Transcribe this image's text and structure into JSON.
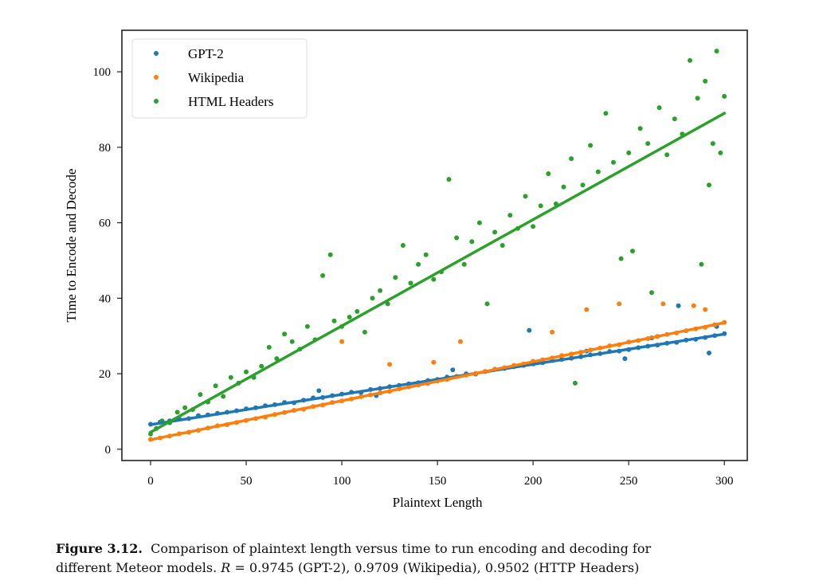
{
  "chart_data": {
    "type": "scatter",
    "title": "",
    "xlabel": "Plaintext Length",
    "ylabel": "Time to Encode and Decode",
    "xlim": [
      -15,
      312
    ],
    "ylim": [
      -3,
      111
    ],
    "xticks": [
      0,
      50,
      100,
      150,
      200,
      250,
      300
    ],
    "yticks": [
      0,
      20,
      40,
      60,
      80,
      100
    ],
    "grid": false,
    "legend_position": "top-left",
    "series": [
      {
        "name": "GPT-2",
        "color": "#1f77b4",
        "fit": {
          "x": [
            0,
            300
          ],
          "y": [
            6.5,
            30.5
          ]
        },
        "points": [
          [
            0,
            6.6
          ],
          [
            5,
            7.2
          ],
          [
            10,
            7.5
          ],
          [
            15,
            8.0
          ],
          [
            20,
            8.1
          ],
          [
            25,
            8.9
          ],
          [
            30,
            9.1
          ],
          [
            35,
            9.5
          ],
          [
            40,
            9.8
          ],
          [
            45,
            10.2
          ],
          [
            50,
            10.7
          ],
          [
            55,
            11.0
          ],
          [
            60,
            11.5
          ],
          [
            65,
            11.8
          ],
          [
            70,
            12.4
          ],
          [
            75,
            12.3
          ],
          [
            80,
            13.0
          ],
          [
            85,
            13.6
          ],
          [
            90,
            13.7
          ],
          [
            95,
            14.2
          ],
          [
            100,
            14.6
          ],
          [
            105,
            15.1
          ],
          [
            110,
            15.0
          ],
          [
            115,
            15.8
          ],
          [
            120,
            16.1
          ],
          [
            125,
            16.6
          ],
          [
            130,
            16.9
          ],
          [
            135,
            17.3
          ],
          [
            140,
            17.6
          ],
          [
            145,
            18.2
          ],
          [
            150,
            18.5
          ],
          [
            155,
            19.1
          ],
          [
            160,
            19.3
          ],
          [
            165,
            20.0
          ],
          [
            170,
            19.9
          ],
          [
            175,
            20.6
          ],
          [
            180,
            21.2
          ],
          [
            185,
            21.4
          ],
          [
            190,
            21.9
          ],
          [
            195,
            22.2
          ],
          [
            200,
            22.6
          ],
          [
            205,
            22.9
          ],
          [
            210,
            23.5
          ],
          [
            215,
            23.8
          ],
          [
            220,
            24.1
          ],
          [
            225,
            24.5
          ],
          [
            230,
            25.0
          ],
          [
            235,
            25.3
          ],
          [
            240,
            25.9
          ],
          [
            245,
            26.0
          ],
          [
            250,
            26.4
          ],
          [
            255,
            26.9
          ],
          [
            260,
            27.3
          ],
          [
            265,
            27.6
          ],
          [
            270,
            28.1
          ],
          [
            275,
            28.3
          ],
          [
            280,
            28.9
          ],
          [
            285,
            29.1
          ],
          [
            290,
            29.6
          ],
          [
            295,
            30.1
          ],
          [
            300,
            30.6
          ],
          [
            88,
            15.5
          ],
          [
            118,
            14.2
          ],
          [
            158,
            21.0
          ],
          [
            198,
            31.5
          ],
          [
            228,
            26.0
          ],
          [
            248,
            24.0
          ],
          [
            262,
            29.5
          ],
          [
            276,
            38.0
          ],
          [
            292,
            25.5
          ],
          [
            296,
            32.5
          ]
        ]
      },
      {
        "name": "Wikipedia",
        "color": "#ff7f0e",
        "fit": {
          "x": [
            0,
            300
          ],
          "y": [
            2.5,
            33.5
          ]
        },
        "points": [
          [
            0,
            2.6
          ],
          [
            5,
            3.0
          ],
          [
            10,
            3.5
          ],
          [
            15,
            4.1
          ],
          [
            20,
            4.5
          ],
          [
            25,
            5.0
          ],
          [
            30,
            5.6
          ],
          [
            35,
            6.2
          ],
          [
            40,
            6.5
          ],
          [
            45,
            7.1
          ],
          [
            50,
            7.6
          ],
          [
            55,
            8.1
          ],
          [
            60,
            8.5
          ],
          [
            65,
            9.2
          ],
          [
            70,
            9.7
          ],
          [
            75,
            10.3
          ],
          [
            80,
            10.6
          ],
          [
            85,
            11.3
          ],
          [
            90,
            11.7
          ],
          [
            95,
            12.4
          ],
          [
            100,
            12.8
          ],
          [
            105,
            13.3
          ],
          [
            110,
            13.9
          ],
          [
            115,
            14.4
          ],
          [
            120,
            14.9
          ],
          [
            125,
            15.3
          ],
          [
            130,
            16.0
          ],
          [
            135,
            16.5
          ],
          [
            140,
            17.0
          ],
          [
            145,
            17.4
          ],
          [
            150,
            18.1
          ],
          [
            155,
            18.5
          ],
          [
            160,
            19.2
          ],
          [
            165,
            19.6
          ],
          [
            170,
            20.1
          ],
          [
            175,
            20.6
          ],
          [
            180,
            21.2
          ],
          [
            185,
            21.6
          ],
          [
            190,
            22.2
          ],
          [
            195,
            22.6
          ],
          [
            200,
            23.3
          ],
          [
            205,
            23.7
          ],
          [
            210,
            24.2
          ],
          [
            215,
            24.8
          ],
          [
            220,
            25.2
          ],
          [
            225,
            25.7
          ],
          [
            230,
            26.3
          ],
          [
            235,
            26.8
          ],
          [
            240,
            27.4
          ],
          [
            245,
            27.7
          ],
          [
            250,
            28.4
          ],
          [
            255,
            28.8
          ],
          [
            260,
            29.3
          ],
          [
            265,
            29.9
          ],
          [
            270,
            30.4
          ],
          [
            275,
            30.8
          ],
          [
            280,
            31.4
          ],
          [
            285,
            31.9
          ],
          [
            290,
            32.3
          ],
          [
            295,
            33.0
          ],
          [
            300,
            33.6
          ],
          [
            100,
            28.5
          ],
          [
            125,
            22.5
          ],
          [
            148,
            23.0
          ],
          [
            162,
            28.5
          ],
          [
            210,
            31.0
          ],
          [
            228,
            37.0
          ],
          [
            245,
            38.5
          ],
          [
            268,
            38.5
          ],
          [
            284,
            38.0
          ],
          [
            290,
            37.0
          ]
        ]
      },
      {
        "name": "HTML Headers",
        "color": "#2ca02c",
        "fit": {
          "x": [
            0,
            300
          ],
          "y": [
            4.5,
            89.0
          ]
        },
        "points": [
          [
            0,
            4.0
          ],
          [
            3,
            5.5
          ],
          [
            6,
            7.5
          ],
          [
            10,
            7.0
          ],
          [
            14,
            9.8
          ],
          [
            18,
            11.0
          ],
          [
            22,
            10.5
          ],
          [
            26,
            14.5
          ],
          [
            30,
            12.5
          ],
          [
            34,
            16.8
          ],
          [
            38,
            14.0
          ],
          [
            42,
            19.0
          ],
          [
            46,
            17.5
          ],
          [
            50,
            20.5
          ],
          [
            54,
            19.0
          ],
          [
            58,
            22.0
          ],
          [
            62,
            27.0
          ],
          [
            66,
            24.0
          ],
          [
            70,
            30.5
          ],
          [
            74,
            28.5
          ],
          [
            78,
            26.5
          ],
          [
            82,
            32.5
          ],
          [
            86,
            29.0
          ],
          [
            90,
            46.0
          ],
          [
            94,
            51.5
          ],
          [
            96,
            34.0
          ],
          [
            100,
            32.5
          ],
          [
            104,
            35.0
          ],
          [
            108,
            36.5
          ],
          [
            112,
            31.0
          ],
          [
            116,
            40.0
          ],
          [
            120,
            42.0
          ],
          [
            124,
            38.5
          ],
          [
            128,
            45.5
          ],
          [
            132,
            54.0
          ],
          [
            136,
            44.0
          ],
          [
            140,
            49.0
          ],
          [
            144,
            51.5
          ],
          [
            148,
            45.0
          ],
          [
            152,
            47.0
          ],
          [
            156,
            71.5
          ],
          [
            160,
            56.0
          ],
          [
            164,
            49.0
          ],
          [
            168,
            55.0
          ],
          [
            172,
            60.0
          ],
          [
            176,
            38.5
          ],
          [
            180,
            57.5
          ],
          [
            184,
            54.0
          ],
          [
            188,
            62.0
          ],
          [
            192,
            58.5
          ],
          [
            196,
            67.0
          ],
          [
            200,
            59.0
          ],
          [
            204,
            64.5
          ],
          [
            208,
            73.0
          ],
          [
            212,
            65.0
          ],
          [
            216,
            69.5
          ],
          [
            220,
            77.0
          ],
          [
            222,
            17.5
          ],
          [
            226,
            70.0
          ],
          [
            230,
            80.5
          ],
          [
            234,
            73.5
          ],
          [
            238,
            89.0
          ],
          [
            242,
            76.0
          ],
          [
            246,
            50.5
          ],
          [
            250,
            78.5
          ],
          [
            252,
            52.5
          ],
          [
            256,
            85.0
          ],
          [
            260,
            81.0
          ],
          [
            262,
            41.5
          ],
          [
            266,
            90.5
          ],
          [
            270,
            78.0
          ],
          [
            274,
            87.5
          ],
          [
            278,
            83.5
          ],
          [
            282,
            103.0
          ],
          [
            286,
            93.0
          ],
          [
            288,
            49.0
          ],
          [
            290,
            97.5
          ],
          [
            292,
            70.0
          ],
          [
            294,
            81.0
          ],
          [
            296,
            105.5
          ],
          [
            298,
            78.5
          ],
          [
            300,
            93.5
          ]
        ]
      }
    ]
  },
  "caption": {
    "label": "Figure 3.12.",
    "text_line1": "Comparison of plaintext length versus time to run encoding and decoding for",
    "text_line2_pre": "different Meteor models.",
    "r_symbol": "R",
    "text_line2_post": "= 0.9745 (GPT-2), 0.9709 (Wikipedia), 0.9502 (HTTP Headers)"
  }
}
